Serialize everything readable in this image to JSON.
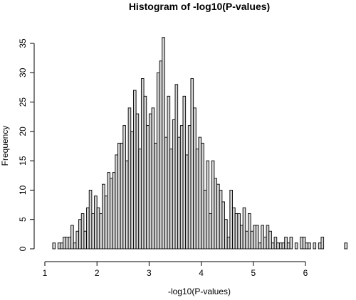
{
  "chart_data": {
    "type": "bar",
    "title": "Histogram of -log10(P-values)",
    "xlabel": "-log10(P-values)",
    "ylabel": "Frequency",
    "bin_width": 0.05,
    "bin_start": 1.15,
    "xlim": [
      1,
      6.75
    ],
    "ylim": [
      0,
      36
    ],
    "xticks": [
      1,
      2,
      3,
      4,
      5,
      6
    ],
    "yticks": [
      0,
      5,
      10,
      15,
      20,
      25,
      30,
      35
    ],
    "colors": {
      "bar_fill": "#d3d3d3",
      "bar_stroke": "#000000"
    },
    "values": [
      1,
      0,
      1,
      1,
      2,
      2,
      2,
      4,
      1,
      3,
      5,
      6,
      3,
      7,
      10,
      6,
      9,
      7,
      6,
      11,
      9,
      13,
      12,
      13,
      16,
      18,
      18,
      21,
      15,
      24,
      20,
      27,
      23,
      17,
      29,
      26,
      21,
      23,
      24,
      18,
      30,
      32,
      36,
      19,
      26,
      17,
      22,
      28,
      19,
      21,
      26,
      16,
      21,
      29,
      24,
      17,
      19,
      18,
      10,
      15,
      6,
      15,
      12,
      11,
      10,
      8,
      5,
      2,
      10,
      7,
      6,
      6,
      4,
      7,
      3,
      6,
      3,
      4,
      4,
      1,
      4,
      2,
      4,
      3,
      1,
      2,
      1,
      1,
      1,
      2,
      1,
      2,
      0,
      1,
      0,
      2,
      2,
      1,
      1,
      0,
      1,
      0,
      1,
      2,
      0,
      0,
      0,
      0,
      0,
      0,
      0,
      0,
      1
    ]
  }
}
